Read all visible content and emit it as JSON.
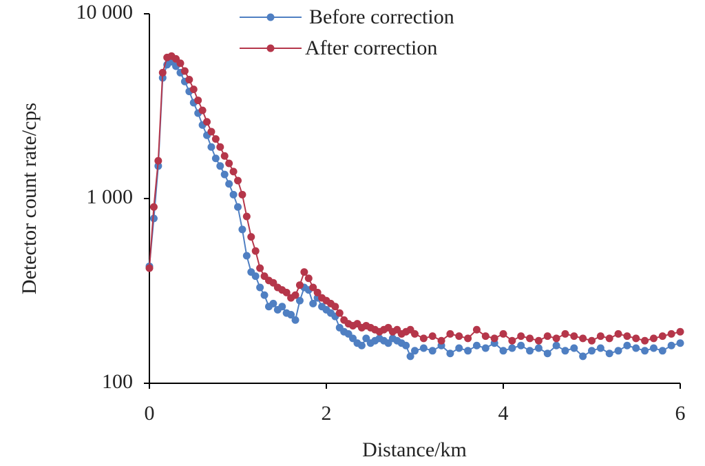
{
  "chart_data": {
    "type": "line",
    "xlabel": "Distance/km",
    "ylabel": "Detector count rate/cps",
    "x": [
      0,
      0.05,
      0.1,
      0.15,
      0.2,
      0.25,
      0.3,
      0.35,
      0.4,
      0.45,
      0.5,
      0.55,
      0.6,
      0.65,
      0.7,
      0.75,
      0.8,
      0.85,
      0.9,
      0.95,
      1.0,
      1.05,
      1.1,
      1.15,
      1.2,
      1.25,
      1.3,
      1.35,
      1.4,
      1.45,
      1.5,
      1.55,
      1.6,
      1.65,
      1.7,
      1.75,
      1.8,
      1.85,
      1.9,
      1.95,
      2.0,
      2.05,
      2.1,
      2.15,
      2.2,
      2.25,
      2.3,
      2.35,
      2.4,
      2.45,
      2.5,
      2.55,
      2.6,
      2.65,
      2.7,
      2.75,
      2.8,
      2.85,
      2.9,
      2.95,
      3.0,
      3.1,
      3.2,
      3.3,
      3.4,
      3.5,
      3.6,
      3.7,
      3.8,
      3.9,
      4.0,
      4.1,
      4.2,
      4.3,
      4.4,
      4.5,
      4.6,
      4.7,
      4.8,
      4.9,
      5.0,
      5.1,
      5.2,
      5.3,
      5.4,
      5.5,
      5.6,
      5.7,
      5.8,
      5.9,
      6.0
    ],
    "series": [
      {
        "name": "Before correction",
        "color": "#4f7fc2",
        "values": [
          430,
          780,
          1500,
          4500,
          5300,
          5500,
          5200,
          4800,
          4300,
          3800,
          3300,
          2900,
          2500,
          2200,
          1900,
          1650,
          1500,
          1350,
          1200,
          1050,
          900,
          680,
          490,
          400,
          380,
          330,
          300,
          260,
          270,
          250,
          260,
          240,
          235,
          220,
          280,
          330,
          320,
          270,
          290,
          260,
          250,
          240,
          230,
          200,
          190,
          185,
          175,
          165,
          160,
          175,
          165,
          170,
          175,
          170,
          165,
          175,
          170,
          165,
          160,
          140,
          150,
          155,
          150,
          160,
          145,
          155,
          150,
          160,
          155,
          165,
          150,
          155,
          160,
          150,
          155,
          145,
          160,
          150,
          155,
          140,
          150,
          155,
          145,
          150,
          160,
          155,
          150,
          155,
          150,
          160,
          165
        ]
      },
      {
        "name": "After correction",
        "color": "#b5364a",
        "values": [
          420,
          900,
          1600,
          4800,
          5800,
          5900,
          5700,
          5400,
          4900,
          4400,
          3900,
          3400,
          3000,
          2600,
          2300,
          2100,
          1900,
          1700,
          1550,
          1400,
          1250,
          1050,
          800,
          620,
          520,
          420,
          380,
          360,
          350,
          330,
          320,
          310,
          290,
          300,
          340,
          400,
          370,
          330,
          310,
          290,
          280,
          270,
          260,
          240,
          220,
          210,
          205,
          210,
          200,
          205,
          200,
          195,
          190,
          195,
          200,
          190,
          195,
          185,
          190,
          195,
          185,
          175,
          180,
          170,
          185,
          180,
          175,
          195,
          180,
          175,
          185,
          170,
          180,
          175,
          170,
          180,
          175,
          185,
          180,
          175,
          170,
          180,
          175,
          185,
          180,
          175,
          170,
          175,
          180,
          185,
          190
        ]
      }
    ],
    "xlim": [
      0,
      6
    ],
    "xticks": [
      0,
      2,
      4,
      6
    ],
    "ylim": [
      100,
      10000
    ],
    "ylog": true,
    "yticks": [
      100,
      {
        "value": 1000,
        "label": "1 000"
      },
      {
        "value": 10000,
        "label": "10 000"
      }
    ],
    "legend": "top"
  }
}
